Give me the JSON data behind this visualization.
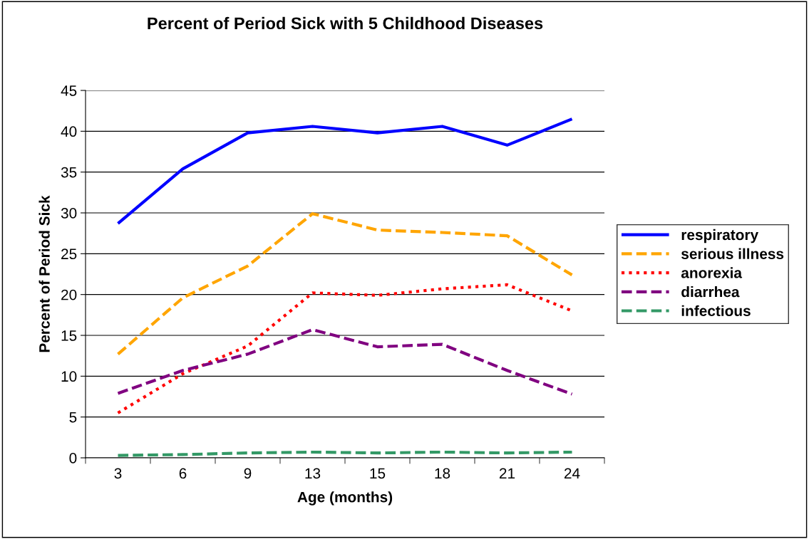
{
  "chart_data": {
    "type": "line",
    "title": "Percent of Period Sick with 5 Childhood Diseases",
    "xlabel": "Age (months)",
    "ylabel": "Percent of Period Sick",
    "categories": [
      "3",
      "6",
      "9",
      "13",
      "15",
      "18",
      "21",
      "24"
    ],
    "series": [
      {
        "name": "respiratory",
        "color": "#0000ff",
        "line_style": "solid",
        "values": [
          28.7,
          35.4,
          39.8,
          40.6,
          39.8,
          40.6,
          38.3,
          41.5
        ]
      },
      {
        "name": "serious illness",
        "color": "#ffa500",
        "line_style": "dashed",
        "values": [
          12.7,
          19.6,
          23.5,
          29.9,
          27.9,
          27.6,
          27.2,
          22.4
        ]
      },
      {
        "name": "anorexia",
        "color": "#ff0000",
        "line_style": "dotted",
        "values": [
          5.5,
          10.3,
          13.7,
          20.2,
          19.9,
          20.7,
          21.2,
          18.0
        ]
      },
      {
        "name": "diarrhea",
        "color": "#800080",
        "line_style": "dashed",
        "values": [
          7.9,
          10.7,
          12.7,
          15.7,
          13.6,
          13.9,
          10.7,
          7.8
        ]
      },
      {
        "name": "infectious",
        "color": "#339966",
        "line_style": "dashed",
        "values": [
          0.3,
          0.4,
          0.6,
          0.7,
          0.6,
          0.7,
          0.6,
          0.7
        ]
      }
    ],
    "ylim": [
      0,
      45
    ],
    "yticks": [
      0,
      5,
      10,
      15,
      20,
      25,
      30,
      35,
      40,
      45
    ],
    "grid": "y",
    "legend": "right",
    "marker": "none"
  }
}
